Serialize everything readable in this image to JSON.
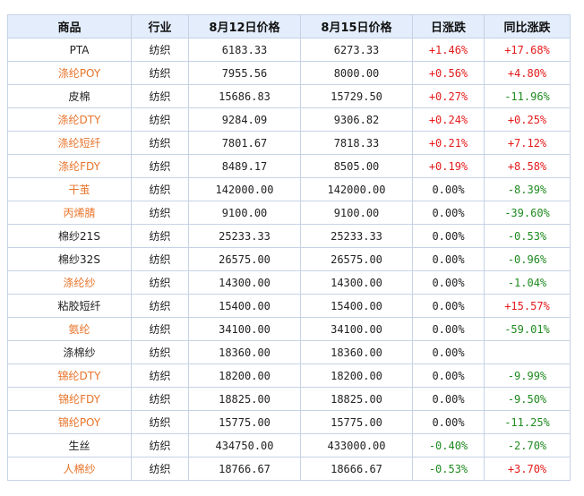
{
  "colors": {
    "header_bg": "#e3edfb",
    "border": "#c6d3e6",
    "link": "#e8742a",
    "up": "#e51a1a",
    "down": "#1f8a1f"
  },
  "table": {
    "headers": [
      "商品",
      "行业",
      "8月12日价格",
      "8月15日价格",
      "日涨跌",
      "同比涨跌"
    ],
    "rows": [
      {
        "name": "PTA",
        "link": false,
        "industry": "纺织",
        "p1": "6183.33",
        "p2": "6273.33",
        "day": "+1.46%",
        "day_dir": "up",
        "yoy": "+17.68%",
        "yoy_dir": "up"
      },
      {
        "name": "涤纶POY",
        "link": true,
        "industry": "纺织",
        "p1": "7955.56",
        "p2": "8000.00",
        "day": "+0.56%",
        "day_dir": "up",
        "yoy": "+4.80%",
        "yoy_dir": "up"
      },
      {
        "name": "皮棉",
        "link": false,
        "industry": "纺织",
        "p1": "15686.83",
        "p2": "15729.50",
        "day": "+0.27%",
        "day_dir": "up",
        "yoy": "-11.96%",
        "yoy_dir": "down"
      },
      {
        "name": "涤纶DTY",
        "link": true,
        "industry": "纺织",
        "p1": "9284.09",
        "p2": "9306.82",
        "day": "+0.24%",
        "day_dir": "up",
        "yoy": "+0.25%",
        "yoy_dir": "up"
      },
      {
        "name": "涤纶短纤",
        "link": true,
        "industry": "纺织",
        "p1": "7801.67",
        "p2": "7818.33",
        "day": "+0.21%",
        "day_dir": "up",
        "yoy": "+7.12%",
        "yoy_dir": "up"
      },
      {
        "name": "涤纶FDY",
        "link": true,
        "industry": "纺织",
        "p1": "8489.17",
        "p2": "8505.00",
        "day": "+0.19%",
        "day_dir": "up",
        "yoy": "+8.58%",
        "yoy_dir": "up"
      },
      {
        "name": "干茧",
        "link": true,
        "industry": "纺织",
        "p1": "142000.00",
        "p2": "142000.00",
        "day": "0.00%",
        "day_dir": "flat",
        "yoy": "-8.39%",
        "yoy_dir": "down"
      },
      {
        "name": "丙烯腈",
        "link": true,
        "industry": "纺织",
        "p1": "9100.00",
        "p2": "9100.00",
        "day": "0.00%",
        "day_dir": "flat",
        "yoy": "-39.60%",
        "yoy_dir": "down"
      },
      {
        "name": "棉纱21S",
        "link": false,
        "industry": "纺织",
        "p1": "25233.33",
        "p2": "25233.33",
        "day": "0.00%",
        "day_dir": "flat",
        "yoy": "-0.53%",
        "yoy_dir": "down"
      },
      {
        "name": "棉纱32S",
        "link": false,
        "industry": "纺织",
        "p1": "26575.00",
        "p2": "26575.00",
        "day": "0.00%",
        "day_dir": "flat",
        "yoy": "-0.96%",
        "yoy_dir": "down"
      },
      {
        "name": "涤纶纱",
        "link": true,
        "industry": "纺织",
        "p1": "14300.00",
        "p2": "14300.00",
        "day": "0.00%",
        "day_dir": "flat",
        "yoy": "-1.04%",
        "yoy_dir": "down"
      },
      {
        "name": "粘胶短纤",
        "link": false,
        "industry": "纺织",
        "p1": "15400.00",
        "p2": "15400.00",
        "day": "0.00%",
        "day_dir": "flat",
        "yoy": "+15.57%",
        "yoy_dir": "up"
      },
      {
        "name": "氨纶",
        "link": true,
        "industry": "纺织",
        "p1": "34100.00",
        "p2": "34100.00",
        "day": "0.00%",
        "day_dir": "flat",
        "yoy": "-59.01%",
        "yoy_dir": "down"
      },
      {
        "name": "涤棉纱",
        "link": false,
        "industry": "纺织",
        "p1": "18360.00",
        "p2": "18360.00",
        "day": "0.00%",
        "day_dir": "flat",
        "yoy": "",
        "yoy_dir": "flat"
      },
      {
        "name": "锦纶DTY",
        "link": true,
        "industry": "纺织",
        "p1": "18200.00",
        "p2": "18200.00",
        "day": "0.00%",
        "day_dir": "flat",
        "yoy": "-9.99%",
        "yoy_dir": "down"
      },
      {
        "name": "锦纶FDY",
        "link": true,
        "industry": "纺织",
        "p1": "18825.00",
        "p2": "18825.00",
        "day": "0.00%",
        "day_dir": "flat",
        "yoy": "-9.50%",
        "yoy_dir": "down"
      },
      {
        "name": "锦纶POY",
        "link": true,
        "industry": "纺织",
        "p1": "15775.00",
        "p2": "15775.00",
        "day": "0.00%",
        "day_dir": "flat",
        "yoy": "-11.25%",
        "yoy_dir": "down"
      },
      {
        "name": "生丝",
        "link": false,
        "industry": "纺织",
        "p1": "434750.00",
        "p2": "433000.00",
        "day": "-0.40%",
        "day_dir": "down",
        "yoy": "-2.70%",
        "yoy_dir": "down"
      },
      {
        "name": "人棉纱",
        "link": true,
        "industry": "纺织",
        "p1": "18766.67",
        "p2": "18666.67",
        "day": "-0.53%",
        "day_dir": "down",
        "yoy": "+3.70%",
        "yoy_dir": "up"
      }
    ]
  }
}
